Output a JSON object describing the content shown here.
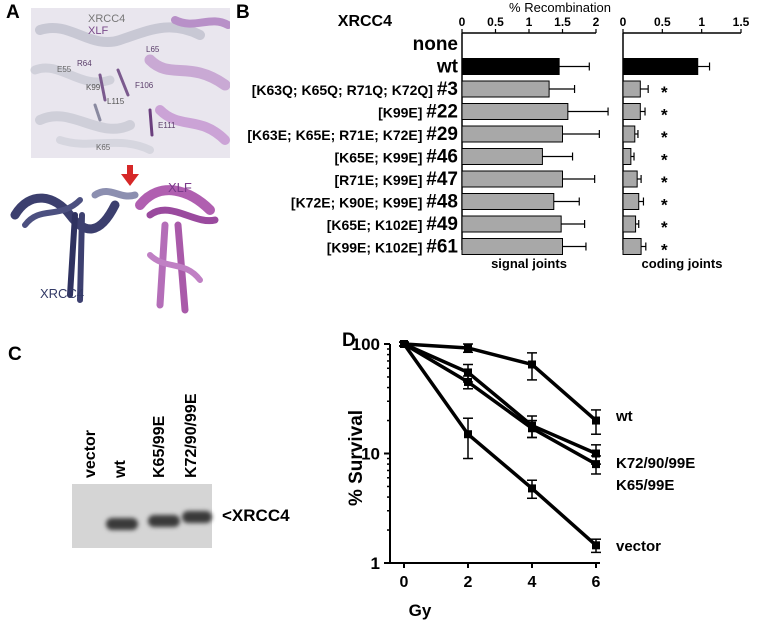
{
  "panels": {
    "a": {
      "letter": "A",
      "labels": {
        "xrcc4_top": "XRCC4",
        "xlf_top": "XLF",
        "xrcc4_bottom": "XRCC4",
        "xlf_bottom": "XLF"
      },
      "residues": [
        "L65",
        "R64",
        "E55",
        "K99",
        "F106",
        "L115",
        "E111",
        "K65"
      ]
    },
    "b": {
      "letter": "B"
    },
    "c": {
      "letter": "C",
      "lanes": [
        "vector",
        "wt",
        "K65/99E",
        "K72/90/99E"
      ],
      "band_label": "<XRCC4"
    },
    "d": {
      "letter": "D"
    }
  },
  "chart_data": [
    {
      "type": "bar",
      "orientation": "horizontal",
      "title": "% Recombination",
      "row_header": "XRCC4",
      "xlabel": "signal joints",
      "xlim": [
        0,
        2
      ],
      "ticks": [
        "0",
        "0.5",
        "1",
        "1.5",
        "2"
      ],
      "categories": [
        "none",
        "wt",
        "[K63Q; K65Q; R71Q; K72Q] #3",
        "[K99E] #22",
        "[K63E; K65E; R71E; K72E] #29",
        "[K65E; K99E] #46",
        "[R71E; K99E] #47",
        "[K72E; K90E; K99E] #48",
        "[K65E; K102E] #49",
        "[K99E; K102E] #61"
      ],
      "category_labels": [
        {
          "name": "none",
          "id": ""
        },
        {
          "name": "wt",
          "id": ""
        },
        {
          "name": "[K63Q; K65Q; R71Q; K72Q]",
          "id": "#3"
        },
        {
          "name": "[K99E]",
          "id": "#22"
        },
        {
          "name": "[K63E; K65E; R71E; K72E]",
          "id": "#29"
        },
        {
          "name": "[K65E; K99E]",
          "id": "#46"
        },
        {
          "name": "[R71E; K99E]",
          "id": "#47"
        },
        {
          "name": "[K72E; K90E; K99E]",
          "id": "#48"
        },
        {
          "name": "[K65E; K102E]",
          "id": "#49"
        },
        {
          "name": "[K99E; K102E]",
          "id": "#61"
        }
      ],
      "values": [
        0.0,
        1.45,
        1.3,
        1.58,
        1.5,
        1.2,
        1.5,
        1.37,
        1.48,
        1.5
      ],
      "errors": [
        0.0,
        0.45,
        0.38,
        0.6,
        0.55,
        0.45,
        0.48,
        0.38,
        0.35,
        0.35
      ],
      "highlight_color": "#000000",
      "bar_color": "#a8a8a8"
    },
    {
      "type": "bar",
      "orientation": "horizontal",
      "xlabel": "coding joints",
      "xlim": [
        0,
        1.5
      ],
      "ticks": [
        "0",
        "0.5",
        "1",
        "1.5"
      ],
      "values": [
        0.0,
        0.95,
        0.22,
        0.22,
        0.15,
        0.1,
        0.18,
        0.2,
        0.16,
        0.23
      ],
      "errors": [
        0.0,
        0.15,
        0.1,
        0.06,
        0.04,
        0.04,
        0.05,
        0.06,
        0.04,
        0.06
      ],
      "significance": [
        "",
        "",
        "*",
        "*",
        "*",
        "*",
        "*",
        "*",
        "*",
        "*"
      ]
    },
    {
      "type": "line",
      "xlabel": "Gy",
      "ylabel": "% Survival",
      "x": [
        0,
        2,
        4,
        6
      ],
      "xticks": [
        "0",
        "2",
        "4",
        "6"
      ],
      "yticks": [
        "1",
        "10",
        "100"
      ],
      "ylim": [
        1,
        100
      ],
      "yscale": "log",
      "series": [
        {
          "name": "wt",
          "values": [
            100,
            92,
            65,
            20
          ],
          "errors": [
            4,
            8,
            18,
            5
          ]
        },
        {
          "name": "K72/90/99E",
          "values": [
            100,
            55,
            18,
            10
          ],
          "errors": [
            4,
            10,
            4,
            2
          ]
        },
        {
          "name": "K65/99E",
          "values": [
            100,
            45,
            17,
            8
          ],
          "errors": [
            4,
            6,
            3,
            1.5
          ]
        },
        {
          "name": "vector",
          "values": [
            100,
            15,
            4.8,
            1.45
          ],
          "errors": [
            4,
            6,
            0.9,
            0.2
          ]
        }
      ],
      "legend_labels": {
        "wt": "wt",
        "k72": "K72/90/99E",
        "k65": "K65/99E",
        "vector": "vector"
      }
    }
  ]
}
